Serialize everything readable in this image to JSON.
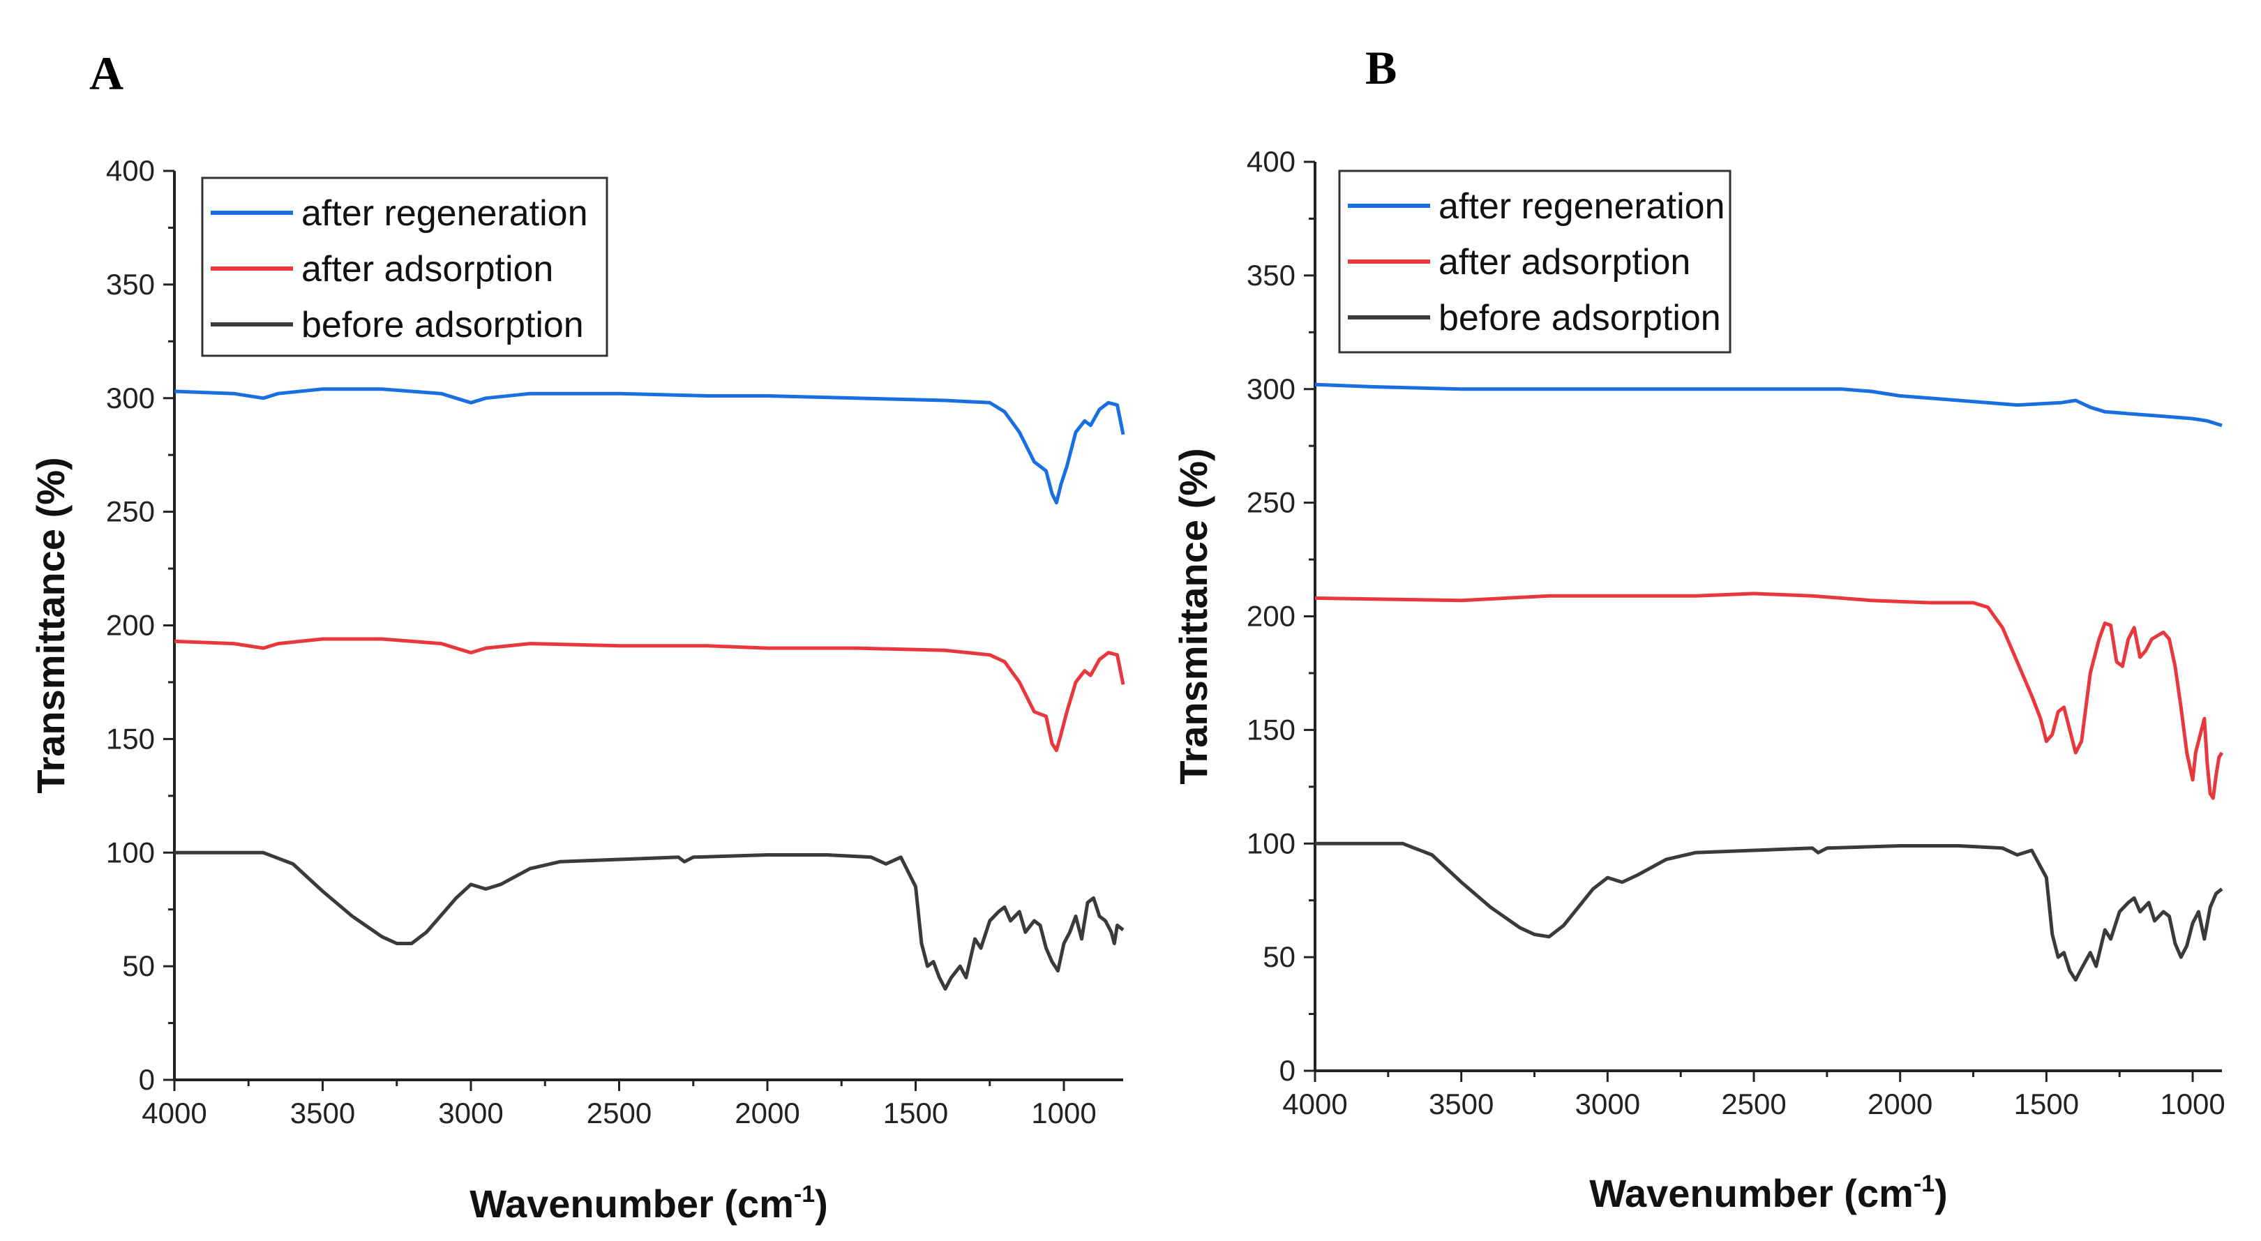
{
  "chart_data": [
    {
      "panel": "A",
      "type": "line",
      "xlabel": "Wavenumber (cm",
      "xlabel_sup": "-1",
      "xlabel_end": ")",
      "ylabel": "Transmittance (%)",
      "xlim": [
        4000,
        800
      ],
      "ylim": [
        0,
        400
      ],
      "x_ticks": [
        4000,
        3500,
        3000,
        2500,
        2000,
        1500,
        1000
      ],
      "y_ticks": [
        0,
        50,
        100,
        150,
        200,
        250,
        300,
        350,
        400
      ],
      "legend_position": "top-left",
      "series": [
        {
          "name": "after regeneration",
          "color": "#1a6fe0",
          "points": [
            [
              4000,
              303
            ],
            [
              3800,
              302
            ],
            [
              3700,
              300
            ],
            [
              3650,
              302
            ],
            [
              3500,
              304
            ],
            [
              3300,
              304
            ],
            [
              3100,
              302
            ],
            [
              3000,
              298
            ],
            [
              2950,
              300
            ],
            [
              2800,
              302
            ],
            [
              2500,
              302
            ],
            [
              2200,
              301
            ],
            [
              2000,
              301
            ],
            [
              1700,
              300
            ],
            [
              1400,
              299
            ],
            [
              1250,
              298
            ],
            [
              1200,
              294
            ],
            [
              1150,
              285
            ],
            [
              1100,
              272
            ],
            [
              1060,
              268
            ],
            [
              1040,
              258
            ],
            [
              1025,
              254
            ],
            [
              1010,
              262
            ],
            [
              990,
              270
            ],
            [
              960,
              285
            ],
            [
              930,
              290
            ],
            [
              910,
              288
            ],
            [
              880,
              295
            ],
            [
              850,
              298
            ],
            [
              820,
              297
            ],
            [
              800,
              284
            ]
          ]
        },
        {
          "name": "after adsorption",
          "color": "#e8383d",
          "points": [
            [
              4000,
              193
            ],
            [
              3800,
              192
            ],
            [
              3700,
              190
            ],
            [
              3650,
              192
            ],
            [
              3500,
              194
            ],
            [
              3300,
              194
            ],
            [
              3100,
              192
            ],
            [
              3000,
              188
            ],
            [
              2950,
              190
            ],
            [
              2800,
              192
            ],
            [
              2500,
              191
            ],
            [
              2200,
              191
            ],
            [
              2000,
              190
            ],
            [
              1700,
              190
            ],
            [
              1400,
              189
            ],
            [
              1250,
              187
            ],
            [
              1200,
              184
            ],
            [
              1150,
              175
            ],
            [
              1100,
              162
            ],
            [
              1060,
              160
            ],
            [
              1040,
              148
            ],
            [
              1025,
              145
            ],
            [
              1010,
              152
            ],
            [
              990,
              162
            ],
            [
              960,
              175
            ],
            [
              930,
              180
            ],
            [
              910,
              178
            ],
            [
              880,
              185
            ],
            [
              850,
              188
            ],
            [
              820,
              187
            ],
            [
              800,
              174
            ]
          ]
        },
        {
          "name": "before adsorption",
          "color": "#3a3a3a",
          "points": [
            [
              4000,
              100
            ],
            [
              3700,
              100
            ],
            [
              3600,
              95
            ],
            [
              3500,
              83
            ],
            [
              3400,
              72
            ],
            [
              3300,
              63
            ],
            [
              3250,
              60
            ],
            [
              3200,
              60
            ],
            [
              3150,
              65
            ],
            [
              3050,
              80
            ],
            [
              3000,
              86
            ],
            [
              2950,
              84
            ],
            [
              2900,
              86
            ],
            [
              2800,
              93
            ],
            [
              2700,
              96
            ],
            [
              2500,
              97
            ],
            [
              2300,
              98
            ],
            [
              2280,
              96
            ],
            [
              2250,
              98
            ],
            [
              2000,
              99
            ],
            [
              1800,
              99
            ],
            [
              1650,
              98
            ],
            [
              1600,
              95
            ],
            [
              1550,
              98
            ],
            [
              1500,
              85
            ],
            [
              1480,
              60
            ],
            [
              1460,
              50
            ],
            [
              1440,
              52
            ],
            [
              1420,
              45
            ],
            [
              1400,
              40
            ],
            [
              1380,
              45
            ],
            [
              1350,
              50
            ],
            [
              1330,
              45
            ],
            [
              1300,
              62
            ],
            [
              1280,
              58
            ],
            [
              1250,
              70
            ],
            [
              1220,
              74
            ],
            [
              1200,
              76
            ],
            [
              1180,
              70
            ],
            [
              1150,
              74
            ],
            [
              1130,
              65
            ],
            [
              1100,
              70
            ],
            [
              1080,
              68
            ],
            [
              1060,
              58
            ],
            [
              1040,
              52
            ],
            [
              1020,
              48
            ],
            [
              1000,
              60
            ],
            [
              980,
              65
            ],
            [
              960,
              72
            ],
            [
              940,
              62
            ],
            [
              920,
              78
            ],
            [
              900,
              80
            ],
            [
              880,
              72
            ],
            [
              860,
              70
            ],
            [
              840,
              65
            ],
            [
              830,
              60
            ],
            [
              820,
              68
            ],
            [
              800,
              66
            ]
          ]
        }
      ]
    },
    {
      "panel": "B",
      "type": "line",
      "xlabel": "Wavenumber (cm",
      "xlabel_sup": "-1",
      "xlabel_end": ")",
      "ylabel": "Transmittance (%)",
      "xlim": [
        4000,
        900
      ],
      "ylim": [
        0,
        400
      ],
      "x_ticks": [
        4000,
        3500,
        3000,
        2500,
        2000,
        1500,
        1000
      ],
      "y_ticks": [
        0,
        50,
        100,
        150,
        200,
        250,
        300,
        350,
        400
      ],
      "legend_position": "top-left",
      "series": [
        {
          "name": "after regeneration",
          "color": "#1a6fe0",
          "points": [
            [
              4000,
              302
            ],
            [
              3800,
              301
            ],
            [
              3500,
              300
            ],
            [
              3000,
              300
            ],
            [
              2500,
              300
            ],
            [
              2200,
              300
            ],
            [
              2100,
              299
            ],
            [
              2000,
              297
            ],
            [
              1800,
              295
            ],
            [
              1600,
              293
            ],
            [
              1450,
              294
            ],
            [
              1400,
              295
            ],
            [
              1350,
              292
            ],
            [
              1300,
              290
            ],
            [
              1200,
              289
            ],
            [
              1100,
              288
            ],
            [
              1000,
              287
            ],
            [
              950,
              286
            ],
            [
              900,
              284
            ]
          ]
        },
        {
          "name": "after adsorption",
          "color": "#e8383d",
          "points": [
            [
              4000,
              208
            ],
            [
              3500,
              207
            ],
            [
              3200,
              209
            ],
            [
              3000,
              209
            ],
            [
              2700,
              209
            ],
            [
              2500,
              210
            ],
            [
              2300,
              209
            ],
            [
              2100,
              207
            ],
            [
              1900,
              206
            ],
            [
              1750,
              206
            ],
            [
              1700,
              204
            ],
            [
              1650,
              195
            ],
            [
              1600,
              180
            ],
            [
              1550,
              165
            ],
            [
              1520,
              155
            ],
            [
              1500,
              145
            ],
            [
              1480,
              148
            ],
            [
              1460,
              158
            ],
            [
              1440,
              160
            ],
            [
              1420,
              150
            ],
            [
              1400,
              140
            ],
            [
              1380,
              145
            ],
            [
              1350,
              175
            ],
            [
              1320,
              190
            ],
            [
              1300,
              197
            ],
            [
              1280,
              196
            ],
            [
              1260,
              180
            ],
            [
              1240,
              178
            ],
            [
              1220,
              190
            ],
            [
              1200,
              195
            ],
            [
              1180,
              182
            ],
            [
              1160,
              185
            ],
            [
              1140,
              190
            ],
            [
              1100,
              193
            ],
            [
              1080,
              190
            ],
            [
              1060,
              178
            ],
            [
              1040,
              160
            ],
            [
              1020,
              140
            ],
            [
              1000,
              128
            ],
            [
              990,
              140
            ],
            [
              970,
              150
            ],
            [
              960,
              155
            ],
            [
              950,
              135
            ],
            [
              940,
              122
            ],
            [
              930,
              120
            ],
            [
              920,
              130
            ],
            [
              910,
              138
            ],
            [
              900,
              140
            ]
          ]
        },
        {
          "name": "before adsorption",
          "color": "#3a3a3a",
          "points": [
            [
              4000,
              100
            ],
            [
              3700,
              100
            ],
            [
              3600,
              95
            ],
            [
              3500,
              83
            ],
            [
              3400,
              72
            ],
            [
              3300,
              63
            ],
            [
              3250,
              60
            ],
            [
              3200,
              59
            ],
            [
              3150,
              64
            ],
            [
              3050,
              80
            ],
            [
              3000,
              85
            ],
            [
              2950,
              83
            ],
            [
              2900,
              86
            ],
            [
              2800,
              93
            ],
            [
              2700,
              96
            ],
            [
              2500,
              97
            ],
            [
              2300,
              98
            ],
            [
              2280,
              96
            ],
            [
              2250,
              98
            ],
            [
              2000,
              99
            ],
            [
              1800,
              99
            ],
            [
              1650,
              98
            ],
            [
              1600,
              95
            ],
            [
              1550,
              97
            ],
            [
              1500,
              85
            ],
            [
              1480,
              60
            ],
            [
              1460,
              50
            ],
            [
              1440,
              52
            ],
            [
              1420,
              44
            ],
            [
              1400,
              40
            ],
            [
              1380,
              45
            ],
            [
              1350,
              52
            ],
            [
              1330,
              46
            ],
            [
              1300,
              62
            ],
            [
              1280,
              58
            ],
            [
              1250,
              70
            ],
            [
              1220,
              74
            ],
            [
              1200,
              76
            ],
            [
              1180,
              70
            ],
            [
              1150,
              74
            ],
            [
              1130,
              66
            ],
            [
              1100,
              70
            ],
            [
              1080,
              68
            ],
            [
              1060,
              56
            ],
            [
              1040,
              50
            ],
            [
              1020,
              55
            ],
            [
              1000,
              65
            ],
            [
              980,
              70
            ],
            [
              960,
              58
            ],
            [
              940,
              72
            ],
            [
              920,
              78
            ],
            [
              900,
              80
            ]
          ]
        }
      ]
    }
  ]
}
